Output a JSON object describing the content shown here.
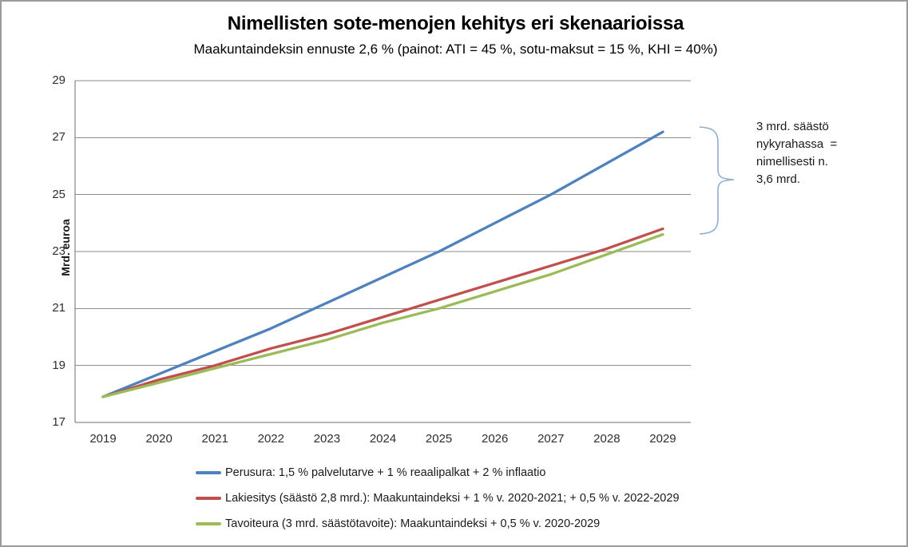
{
  "header": {
    "title": "Nimellisten sote-menojen kehitys eri skenaarioissa",
    "subtitle": "Maakuntaindeksin ennuste 2,6 % (painot: ATI = 45 %, sotu-maksut = 15 %, KHI = 40%)"
  },
  "chart_data": {
    "type": "line",
    "title": "Nimellisten sote-menojen kehitys eri skenaarioissa",
    "subtitle": "Maakuntaindeksin ennuste 2,6 % (painot: ATI = 45 %, sotu-maksut = 15 %, KHI = 40%)",
    "ylabel": "Mrd. euroa",
    "xlabel": "",
    "ylim": [
      17,
      29
    ],
    "yticks": [
      17,
      19,
      21,
      23,
      25,
      27,
      29
    ],
    "grid": "horizontal",
    "legend_position": "bottom-left",
    "categories": [
      "2019",
      "2020",
      "2021",
      "2022",
      "2023",
      "2024",
      "2025",
      "2026",
      "2027",
      "2028",
      "2029"
    ],
    "series": [
      {
        "name": "Perusura: 1,5 % palvelutarve + 1 % reaalipalkat + 2 % inflaatio",
        "color": "#4F81BD",
        "values": [
          17.9,
          18.7,
          19.5,
          20.3,
          21.2,
          22.1,
          23.0,
          24.0,
          25.0,
          26.1,
          27.2
        ]
      },
      {
        "name": "Lakiesitys (säästö 2,8 mrd.): Maakuntaindeksi + 1 % v. 2020-2021; + 0,5 % v. 2022-2029",
        "color": "#C0504D",
        "values": [
          17.9,
          18.5,
          19.0,
          19.6,
          20.1,
          20.7,
          21.3,
          21.9,
          22.5,
          23.1,
          23.8
        ]
      },
      {
        "name": "Tavoiteura (3 mrd. säästötavoite): Maakuntaindeksi + 0,5 % v. 2020-2029",
        "color": "#9BBB59",
        "values": [
          17.9,
          18.4,
          18.9,
          19.4,
          19.9,
          20.5,
          21.0,
          21.6,
          22.2,
          22.9,
          23.6
        ]
      }
    ]
  },
  "annotation": {
    "text": "3 mrd. säästö\nnykyrahassa  =\nnimellisesti n.\n3,6 mrd.",
    "brace_color": "#92AECE"
  },
  "style": {
    "gridline_color": "#8e8e8e",
    "axis_color": "#6e6e6e"
  }
}
